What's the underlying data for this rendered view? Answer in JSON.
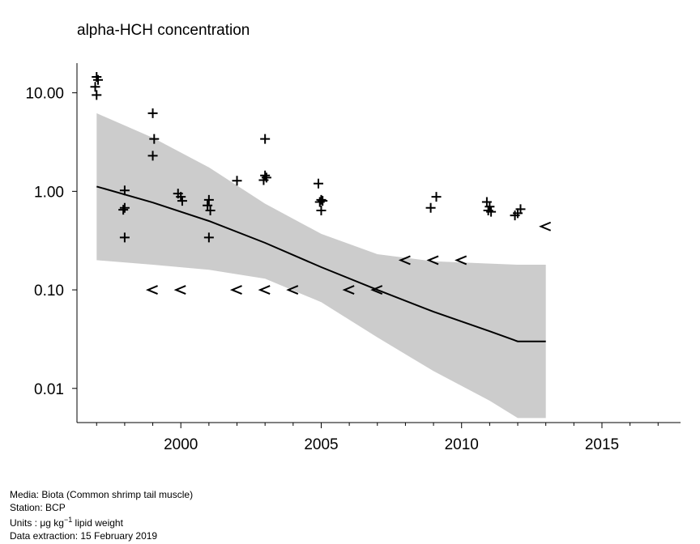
{
  "chart_data": {
    "type": "scatter",
    "title": "alpha-HCH concentration",
    "xlabel": "",
    "ylabel": "",
    "y_scale": "log",
    "xlim": [
      1996.3,
      2017.8
    ],
    "ylim": [
      0.0045,
      20
    ],
    "x_ticks": [
      2000,
      2005,
      2010,
      2015
    ],
    "x_tick_labels": [
      "2000",
      "2005",
      "2010",
      "2015"
    ],
    "x_minor_ticks": [
      1997,
      1998,
      1999,
      2001,
      2002,
      2003,
      2004,
      2006,
      2007,
      2008,
      2009,
      2011,
      2012,
      2013,
      2014,
      2016,
      2017
    ],
    "y_ticks": [
      10,
      1,
      0.1,
      0.01
    ],
    "y_tick_labels": [
      "10.00",
      "1.00",
      "0.10",
      "0.01"
    ],
    "series": [
      {
        "marker": "+",
        "points": [
          [
            1997,
            14.5
          ],
          [
            1997.05,
            13.5
          ],
          [
            1996.95,
            11.5
          ],
          [
            1997,
            9.5
          ],
          [
            1998,
            1.02
          ],
          [
            1998,
            0.68
          ],
          [
            1997.95,
            0.65
          ],
          [
            1998,
            0.34
          ],
          [
            1999,
            6.2
          ],
          [
            1999.05,
            3.4
          ],
          [
            1999,
            2.3
          ],
          [
            1999.9,
            0.95
          ],
          [
            2000,
            0.88
          ],
          [
            2000.05,
            0.8
          ],
          [
            2001,
            0.82
          ],
          [
            2000.95,
            0.72
          ],
          [
            2001.05,
            0.64
          ],
          [
            2001,
            0.34
          ],
          [
            2002,
            1.28
          ],
          [
            2003,
            3.4
          ],
          [
            2003,
            1.45
          ],
          [
            2002.95,
            1.3
          ],
          [
            2003.05,
            1.38
          ],
          [
            2004.9,
            1.2
          ],
          [
            2005,
            0.82
          ],
          [
            2004.95,
            0.78
          ],
          [
            2005.05,
            0.8
          ],
          [
            2005,
            0.64
          ],
          [
            2009.1,
            0.88
          ],
          [
            2008.9,
            0.68
          ],
          [
            2010.9,
            0.78
          ],
          [
            2011,
            0.7
          ],
          [
            2010.95,
            0.64
          ],
          [
            2011.05,
            0.62
          ],
          [
            2012.1,
            0.66
          ],
          [
            2011.9,
            0.57
          ],
          [
            2012,
            0.6
          ]
        ]
      },
      {
        "marker": "<",
        "note": "less than",
        "points": [
          [
            1999,
            0.1
          ],
          [
            2000,
            0.1
          ],
          [
            2002,
            0.1
          ],
          [
            2003,
            0.1
          ],
          [
            2004,
            0.1
          ],
          [
            2006,
            0.1
          ],
          [
            2007,
            0.1
          ],
          [
            2008,
            0.2
          ],
          [
            2009,
            0.2
          ],
          [
            2010,
            0.2
          ],
          [
            2013,
            0.44
          ]
        ]
      }
    ],
    "trend": {
      "x": [
        1997,
        1999,
        2001,
        2003,
        2005,
        2007,
        2009,
        2011,
        2012,
        2013
      ],
      "y": [
        1.12,
        0.77,
        0.5,
        0.3,
        0.17,
        0.1,
        0.06,
        0.038,
        0.03,
        0.03
      ]
    },
    "confidence_band": {
      "x": [
        1997,
        1999,
        2001,
        2003,
        2005,
        2007,
        2009,
        2011,
        2012,
        2013
      ],
      "lower": [
        0.2,
        0.18,
        0.16,
        0.13,
        0.075,
        0.033,
        0.015,
        0.0075,
        0.005,
        0.005
      ],
      "upper": [
        6.2,
        3.5,
        1.75,
        0.75,
        0.37,
        0.23,
        0.195,
        0.185,
        0.18,
        0.18
      ]
    }
  },
  "footer": {
    "media": "Media: Biota (Common shrimp tail muscle)",
    "station": "Station: BCP",
    "units_prefix": "Units : ",
    "units_mu": "μg kg",
    "units_exp": "−1",
    "units_suffix": " lipid weight",
    "extraction": "Data extraction: 15 February 2019"
  },
  "colors": {
    "band": "#cccccc",
    "line": "#000000",
    "marker": "#000000"
  }
}
